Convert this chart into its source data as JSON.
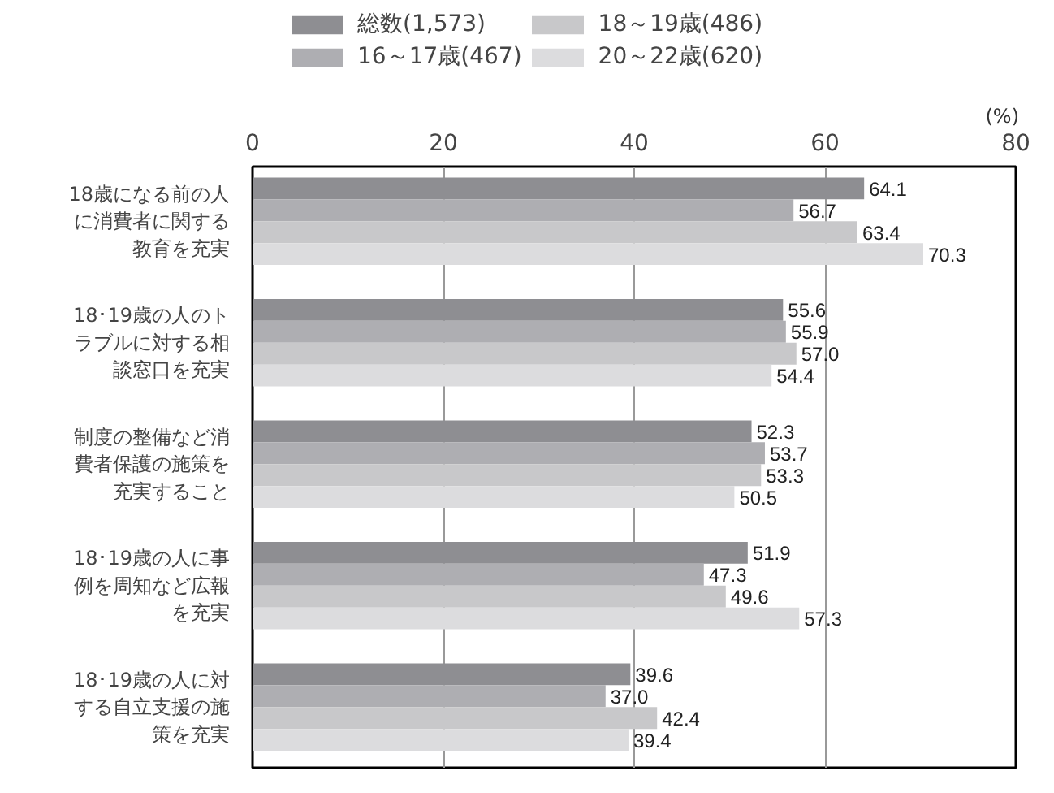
{
  "chart_data": {
    "type": "bar",
    "orientation": "horizontal",
    "categories": [
      "18歳になる前の人に消費者に関する教育を充実",
      "18･19歳の人のトラブルに対する相談窓口を充実",
      "制度の整備など消費者保護の施策を充実すること",
      "18･19歳の人に事例を周知など広報を充実",
      "18･19歳の人に対する自立支援の施策を充実"
    ],
    "series": [
      {
        "name": "総数(1,573)",
        "color": "#8e8e92",
        "values": [
          64.1,
          55.6,
          52.3,
          51.9,
          39.6
        ],
        "value_labels": [
          "64.1",
          "55.6",
          "52.3",
          "51.9",
          "39.6"
        ]
      },
      {
        "name": "16～17歳(467)",
        "color": "#aeaeb2",
        "values": [
          56.7,
          55.9,
          53.7,
          47.3,
          37.0
        ],
        "value_labels": [
          "56.7",
          "55.9",
          "53.7",
          "47.3",
          "37.0"
        ]
      },
      {
        "name": "18～19歳(486)",
        "color": "#c8c8ca",
        "values": [
          63.4,
          57.0,
          53.3,
          49.6,
          42.4
        ],
        "value_labels": [
          "63.4",
          "57.0",
          "53.3",
          "49.6",
          "42.4"
        ]
      },
      {
        "name": "20～22歳(620)",
        "color": "#dcdcde",
        "values": [
          70.3,
          54.4,
          50.5,
          57.3,
          39.4
        ],
        "value_labels": [
          "70.3",
          "54.4",
          "50.5",
          "57.3",
          "39.4"
        ]
      }
    ],
    "xlim": [
      0,
      80
    ],
    "xticks": [
      0,
      20,
      40,
      60,
      80
    ],
    "xlabel": "(%)",
    "grid": "x",
    "legend": "top"
  }
}
